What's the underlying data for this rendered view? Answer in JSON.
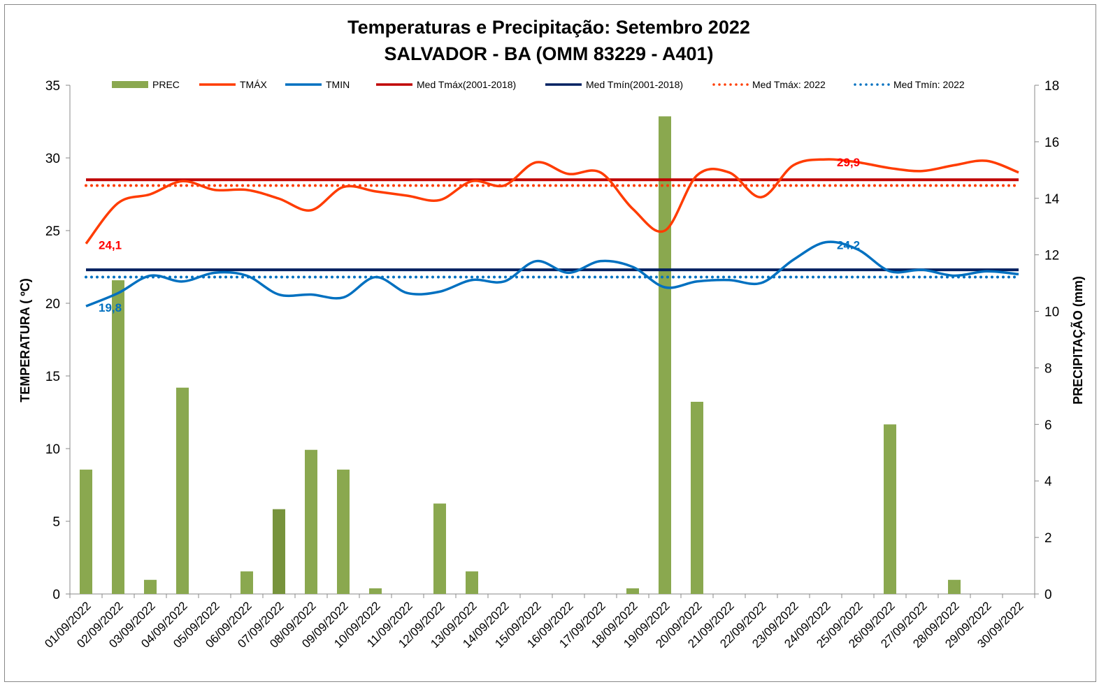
{
  "chart_data": {
    "type": "bar+line",
    "title": "Temperaturas e Precipitação: Setembro 2022",
    "subtitle": "SALVADOR - BA (OMM 83229 - A401)",
    "ylabel": "TEMPERATURA  ( ºC)",
    "y2label": "PRECIPITAÇÃO  (mm)",
    "ylim": [
      0,
      35
    ],
    "y_ticks": [
      0,
      5,
      10,
      15,
      20,
      25,
      30,
      35
    ],
    "y2lim": [
      0,
      18
    ],
    "y2_ticks": [
      0,
      2,
      4,
      6,
      8,
      10,
      12,
      14,
      16,
      18
    ],
    "categories": [
      "01/09/2022",
      "02/09/2022",
      "03/09/2022",
      "04/09/2022",
      "05/09/2022",
      "06/09/2022",
      "07/09/2022",
      "08/09/2022",
      "09/09/2022",
      "10/09/2022",
      "11/09/2022",
      "12/09/2022",
      "13/09/2022",
      "14/09/2022",
      "15/09/2022",
      "16/09/2022",
      "17/09/2022",
      "18/09/2022",
      "19/09/2022",
      "20/09/2022",
      "21/09/2022",
      "22/09/2022",
      "23/09/2022",
      "24/09/2022",
      "25/09/2022",
      "26/09/2022",
      "27/09/2022",
      "28/09/2022",
      "29/09/2022",
      "30/09/2022"
    ],
    "series": [
      {
        "name": "PREC",
        "type": "bar",
        "axis": "right",
        "color": "#8aa84f",
        "values": [
          4.4,
          11.1,
          0.5,
          7.3,
          0,
          0.8,
          3.0,
          5.1,
          4.4,
          0.2,
          0,
          3.2,
          0.8,
          0,
          0,
          0,
          0,
          0.2,
          16.9,
          6.8,
          0,
          0,
          0,
          0,
          0,
          6.0,
          0,
          0.5,
          0,
          0
        ]
      },
      {
        "name": "TMÁX",
        "type": "line",
        "color": "#ff3c00",
        "values": [
          24.1,
          26.9,
          27.5,
          28.4,
          27.8,
          27.8,
          27.2,
          26.4,
          28.0,
          27.7,
          27.4,
          27.1,
          28.4,
          28.1,
          29.7,
          28.9,
          29.0,
          26.5,
          25.0,
          28.8,
          29.0,
          27.3,
          29.5,
          29.9,
          29.7,
          29.3,
          29.1,
          29.5,
          29.8,
          29.0
        ]
      },
      {
        "name": "TMIN",
        "type": "line",
        "color": "#0070c0",
        "values": [
          19.8,
          20.7,
          21.9,
          21.5,
          22.1,
          21.9,
          20.6,
          20.6,
          20.4,
          21.8,
          20.7,
          20.8,
          21.6,
          21.5,
          22.9,
          22.1,
          22.9,
          22.5,
          21.1,
          21.5,
          21.6,
          21.4,
          23.0,
          24.2,
          23.7,
          22.2,
          22.3,
          21.9,
          22.2,
          22.0
        ]
      },
      {
        "name": "Med Tmáx(2001-2018)",
        "type": "hline",
        "color": "#c00000",
        "value": 28.5
      },
      {
        "name": "Med Tmín(2001-2018)",
        "type": "hline",
        "color": "#002060",
        "value": 22.3
      },
      {
        "name": "Med Tmáx: 2022",
        "type": "hline-dotted",
        "color": "#ff3c00",
        "value": 28.1
      },
      {
        "name": "Med Tmín: 2022",
        "type": "hline-dotted",
        "color": "#0070c0",
        "value": 21.8
      }
    ],
    "annotations": [
      {
        "text": "24,1",
        "series": "TMÁX",
        "day": 1,
        "color": "#ff0000"
      },
      {
        "text": "29,9",
        "series": "TMÁX",
        "day": 24,
        "color": "#ff0000"
      },
      {
        "text": "19,8",
        "series": "TMIN",
        "day": 1,
        "color": "#0070c0"
      },
      {
        "text": "24.2",
        "series": "TMIN",
        "day": 24,
        "color": "#0070c0"
      }
    ],
    "legend": "top"
  }
}
